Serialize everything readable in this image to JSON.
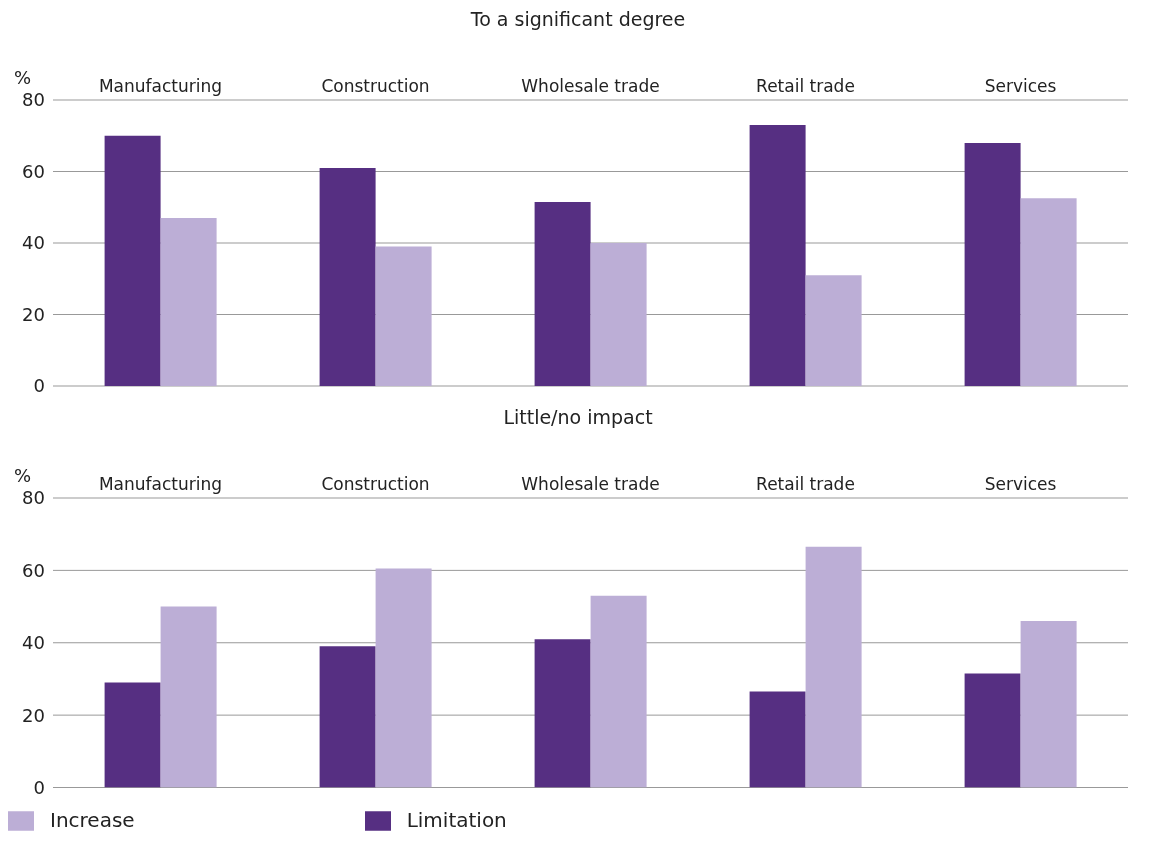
{
  "chart_data": [
    {
      "type": "bar",
      "title": "To a significant degree",
      "ylabel": "%",
      "categories": [
        "Manufacturing",
        "Construction",
        "Wholesale trade",
        "Retail trade",
        "Services"
      ],
      "series": [
        {
          "color": "#562f82",
          "values": [
            70,
            61,
            51.5,
            73,
            68
          ]
        },
        {
          "color": "#bcaed6",
          "values": [
            47,
            39,
            40,
            31,
            52.5
          ]
        }
      ],
      "ylim": [
        0,
        80
      ],
      "yticks": [
        0,
        20,
        40,
        60,
        80
      ],
      "grid": "y",
      "legend": false
    },
    {
      "type": "bar",
      "title": "Little/no impact",
      "ylabel": "%",
      "categories": [
        "Manufacturing",
        "Construction",
        "Wholesale trade",
        "Retail trade",
        "Services"
      ],
      "series": [
        {
          "name": "Limitation",
          "color": "#562f82",
          "values": [
            29,
            39,
            41,
            26.5,
            31.5
          ]
        },
        {
          "name": "Increase",
          "color": "#bcaed6",
          "values": [
            50,
            60.5,
            53,
            66.5,
            46
          ]
        }
      ],
      "ylim": [
        0,
        80
      ],
      "yticks": [
        0,
        20,
        40,
        60,
        80
      ],
      "grid": "y",
      "legend": "bottom"
    }
  ]
}
